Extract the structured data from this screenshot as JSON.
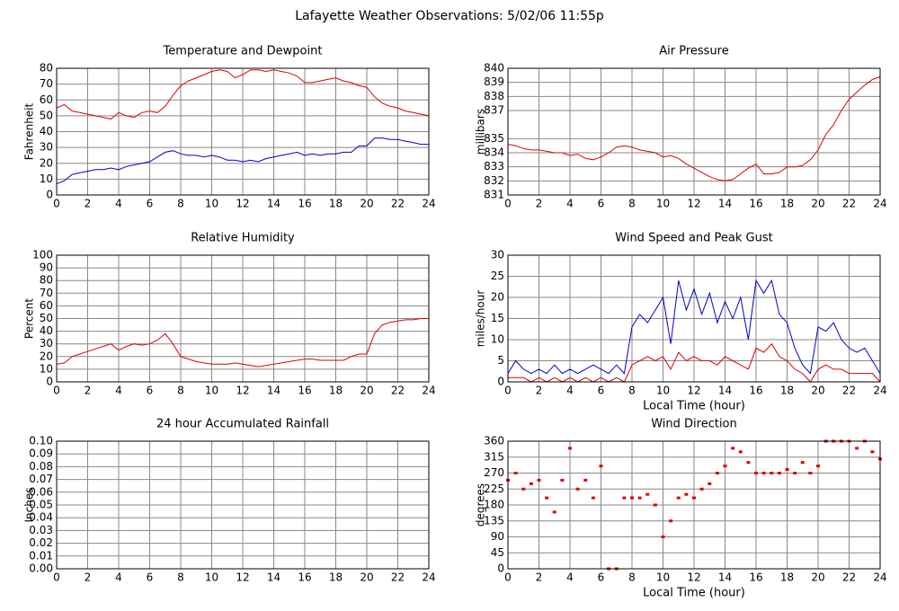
{
  "title": "Lafayette Weather Observations: 5/02/06 11:55p",
  "chart_data": [
    {
      "type": "line",
      "title": "Temperature and Dewpoint",
      "ylabel": "Fahrenheit",
      "grid": true,
      "x": [
        0,
        0.5,
        1,
        1.5,
        2,
        2.5,
        3,
        3.5,
        4,
        4.5,
        5,
        5.5,
        6,
        6.5,
        7,
        7.5,
        8,
        8.5,
        9,
        9.5,
        10,
        10.5,
        11,
        11.5,
        12,
        12.5,
        13,
        13.5,
        14,
        14.5,
        15,
        15.5,
        16,
        16.5,
        17,
        17.5,
        18,
        18.5,
        19,
        19.5,
        20,
        20.5,
        21,
        21.5,
        22,
        22.5,
        23,
        23.5,
        24
      ],
      "series": [
        {
          "color": "#dd0000",
          "values": [
            55,
            57,
            53,
            52,
            51,
            50,
            49,
            48,
            52,
            50,
            49,
            52,
            53,
            52,
            56,
            63,
            69,
            72,
            74,
            76,
            78,
            79,
            78,
            74,
            76,
            79,
            79,
            78,
            79,
            78,
            77,
            75,
            71,
            71,
            72,
            73,
            74,
            72,
            71,
            69,
            68,
            62,
            58,
            56,
            55,
            53,
            52,
            51,
            50
          ]
        },
        {
          "color": "#0000cc",
          "values": [
            7,
            9,
            13,
            14,
            15,
            16,
            16,
            17,
            16,
            18,
            19,
            20,
            21,
            24,
            27,
            28,
            26,
            25,
            25,
            24,
            25,
            24,
            22,
            22,
            21,
            22,
            21,
            23,
            24,
            25,
            26,
            27,
            25,
            26,
            25,
            26,
            26,
            27,
            27,
            31,
            31,
            36,
            36,
            35,
            35,
            34,
            33,
            32,
            32
          ]
        }
      ],
      "xlim": [
        0,
        24
      ],
      "xticks": [
        0,
        2,
        4,
        6,
        8,
        10,
        12,
        14,
        16,
        18,
        20,
        22,
        24
      ],
      "ylim": [
        0,
        80
      ],
      "yticks": [
        0,
        10,
        20,
        30,
        40,
        50,
        60,
        70,
        80
      ]
    },
    {
      "type": "line",
      "title": "Air Pressure",
      "ylabel": "millibars",
      "grid": true,
      "x": [
        0,
        0.5,
        1,
        1.5,
        2,
        2.5,
        3,
        3.5,
        4,
        4.5,
        5,
        5.5,
        6,
        6.5,
        7,
        7.5,
        8,
        8.5,
        9,
        9.5,
        10,
        10.5,
        11,
        11.5,
        12,
        12.5,
        13,
        13.5,
        14,
        14.5,
        15,
        15.5,
        16,
        16.5,
        17,
        17.5,
        18,
        18.5,
        19,
        19.5,
        20,
        20.5,
        21,
        21.5,
        22,
        22.5,
        23,
        23.5,
        24
      ],
      "series": [
        {
          "color": "#dd0000",
          "values": [
            834.6,
            834.5,
            834.3,
            834.2,
            834.2,
            834.1,
            834.0,
            834.0,
            833.8,
            833.9,
            833.6,
            833.5,
            833.7,
            834.0,
            834.4,
            834.5,
            834.4,
            834.2,
            834.1,
            834.0,
            833.7,
            833.8,
            833.6,
            833.2,
            832.9,
            832.6,
            832.3,
            832.1,
            832.0,
            832.1,
            832.5,
            832.9,
            833.2,
            832.5,
            832.5,
            832.6,
            833.0,
            833.0,
            833.1,
            833.5,
            834.2,
            835.3,
            836.0,
            837.0,
            837.8,
            838.3,
            838.8,
            839.2,
            839.4
          ]
        }
      ],
      "xlim": [
        0,
        24
      ],
      "xticks": [
        0,
        2,
        4,
        6,
        8,
        10,
        12,
        14,
        16,
        18,
        20,
        22,
        24
      ],
      "ylim": [
        831,
        840
      ],
      "yticks": [
        831,
        832,
        833,
        834,
        835,
        837,
        838,
        839,
        840
      ]
    },
    {
      "type": "line",
      "title": "Relative Humidity",
      "ylabel": "Percent",
      "grid": true,
      "x": [
        0,
        0.5,
        1,
        1.5,
        2,
        2.5,
        3,
        3.5,
        4,
        4.5,
        5,
        5.5,
        6,
        6.5,
        7,
        7.5,
        8,
        8.5,
        9,
        9.5,
        10,
        10.5,
        11,
        11.5,
        12,
        12.5,
        13,
        13.5,
        14,
        14.5,
        15,
        15.5,
        16,
        16.5,
        17,
        17.5,
        18,
        18.5,
        19,
        19.5,
        20,
        20.5,
        21,
        21.5,
        22,
        22.5,
        23,
        23.5,
        24
      ],
      "series": [
        {
          "color": "#dd0000",
          "values": [
            14,
            15,
            20,
            22,
            24,
            26,
            28,
            30,
            25,
            28,
            30,
            29,
            30,
            33,
            38,
            30,
            20,
            18,
            16,
            15,
            14,
            14,
            14,
            15,
            14,
            13,
            12,
            13,
            14,
            15,
            16,
            17,
            18,
            18,
            17,
            17,
            17,
            17,
            20,
            22,
            22,
            38,
            45,
            47,
            48,
            49,
            49,
            50,
            50
          ]
        }
      ],
      "xlim": [
        0,
        24
      ],
      "xticks": [
        0,
        2,
        4,
        6,
        8,
        10,
        12,
        14,
        16,
        18,
        20,
        22,
        24
      ],
      "ylim": [
        0,
        100
      ],
      "yticks": [
        0,
        10,
        20,
        30,
        40,
        50,
        60,
        70,
        80,
        90,
        100
      ]
    },
    {
      "type": "line",
      "title": "Wind Speed and Peak Gust",
      "ylabel": "miles/hour",
      "xlabel": "Local Time (hour)",
      "grid": true,
      "x": [
        0,
        0.5,
        1,
        1.5,
        2,
        2.5,
        3,
        3.5,
        4,
        4.5,
        5,
        5.5,
        6,
        6.5,
        7,
        7.5,
        8,
        8.5,
        9,
        9.5,
        10,
        10.5,
        11,
        11.5,
        12,
        12.5,
        13,
        13.5,
        14,
        14.5,
        15,
        15.5,
        16,
        16.5,
        17,
        17.5,
        18,
        18.5,
        19,
        19.5,
        20,
        20.5,
        21,
        21.5,
        22,
        22.5,
        23,
        23.5,
        24
      ],
      "series": [
        {
          "color": "#0000cc",
          "values": [
            2,
            5,
            3,
            2,
            3,
            2,
            4,
            2,
            3,
            2,
            3,
            4,
            3,
            2,
            4,
            2,
            13,
            16,
            14,
            17,
            20,
            9,
            24,
            17,
            22,
            16,
            21,
            14,
            19,
            15,
            20,
            10,
            24,
            21,
            24,
            16,
            14,
            8,
            4,
            2,
            13,
            12,
            14,
            10,
            8,
            7,
            8,
            5,
            2
          ]
        },
        {
          "color": "#dd0000",
          "values": [
            1,
            1,
            1,
            0,
            1,
            0,
            1,
            0,
            1,
            0,
            1,
            0,
            1,
            0,
            1,
            0,
            4,
            5,
            6,
            5,
            6,
            3,
            7,
            5,
            6,
            5,
            5,
            4,
            6,
            5,
            4,
            3,
            8,
            7,
            9,
            6,
            5,
            3,
            2,
            0,
            3,
            4,
            3,
            3,
            2,
            2,
            2,
            2,
            0
          ]
        }
      ],
      "xlim": [
        0,
        24
      ],
      "xticks": [
        0,
        2,
        4,
        6,
        8,
        10,
        12,
        14,
        16,
        18,
        20,
        22,
        24
      ],
      "ylim": [
        0,
        30
      ],
      "yticks": [
        0,
        5,
        10,
        15,
        20,
        25,
        30
      ]
    },
    {
      "type": "line",
      "title": "24 hour Accumulated Rainfall",
      "ylabel": "Inches",
      "grid": true,
      "x": [
        0,
        24
      ],
      "series": [
        {
          "color": "#dd0000",
          "values": [
            0,
            0
          ]
        }
      ],
      "xlim": [
        0,
        24
      ],
      "xticks": [
        0,
        2,
        4,
        6,
        8,
        10,
        12,
        14,
        16,
        18,
        20,
        22,
        24
      ],
      "ylim": [
        0,
        0.1
      ],
      "yticks": [
        {
          "value": 0,
          "label": "0.00"
        },
        {
          "value": 0.01,
          "label": "0.01"
        },
        {
          "value": 0.02,
          "label": "0.02"
        },
        {
          "value": 0.03,
          "label": "0.03"
        },
        {
          "value": 0.04,
          "label": "0.04"
        },
        {
          "value": 0.05,
          "label": "0.05"
        },
        {
          "value": 0.06,
          "label": "0.06"
        },
        {
          "value": 0.07,
          "label": "0.07"
        },
        {
          "value": 0.08,
          "label": "0.08"
        },
        {
          "value": 0.09,
          "label": "0.09"
        },
        {
          "value": 0.1,
          "label": "0.10"
        }
      ]
    },
    {
      "type": "scatter",
      "title": "Wind Direction",
      "ylabel": "degrees",
      "xlabel": "Local Time (hour)",
      "grid": true,
      "x": [
        0,
        0.5,
        1,
        1.5,
        2,
        2.5,
        3,
        3.5,
        4,
        4.5,
        5,
        5.5,
        6,
        6.5,
        7,
        7.5,
        8,
        8.5,
        9,
        9.5,
        10,
        10.5,
        11,
        11.5,
        12,
        12.5,
        13,
        13.5,
        14,
        14.5,
        15,
        15.5,
        16,
        16.5,
        17,
        17.5,
        18,
        18.5,
        19,
        19.5,
        20,
        20.5,
        21,
        21.5,
        22,
        22.5,
        23,
        23.5,
        24
      ],
      "series": [
        {
          "color": "#dd0000",
          "values": [
            250,
            270,
            225,
            240,
            250,
            200,
            160,
            250,
            340,
            225,
            250,
            200,
            290,
            0,
            0,
            200,
            200,
            200,
            210,
            180,
            90,
            135,
            200,
            210,
            200,
            225,
            240,
            270,
            290,
            340,
            330,
            300,
            270,
            270,
            270,
            270,
            280,
            270,
            300,
            270,
            290,
            360,
            360,
            360,
            360,
            340,
            360,
            330,
            310
          ]
        }
      ],
      "xlim": [
        0,
        24
      ],
      "xticks": [
        0,
        2,
        4,
        6,
        8,
        10,
        12,
        14,
        16,
        18,
        20,
        22,
        24
      ],
      "ylim": [
        0,
        360
      ],
      "yticks": [
        0,
        45,
        90,
        135,
        180,
        225,
        270,
        315,
        360
      ]
    }
  ]
}
